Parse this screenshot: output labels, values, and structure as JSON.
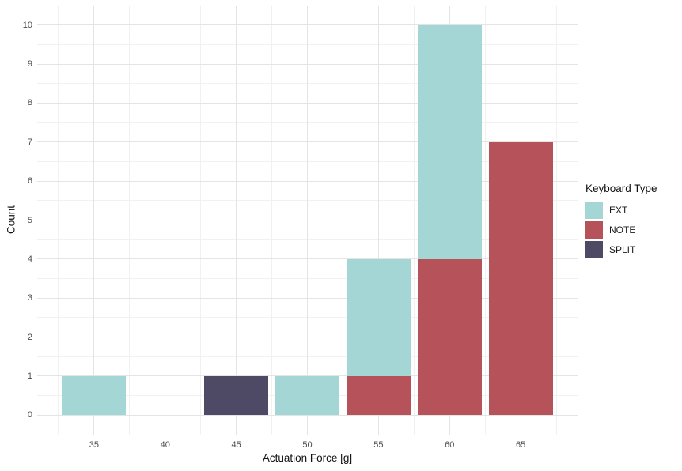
{
  "chart_data": {
    "type": "bar",
    "stacked": true,
    "title": "",
    "xlabel": "Actuation Force [g]",
    "ylabel": "Count",
    "legend_title": "Keyboard Type",
    "legend_position": "right",
    "grid": true,
    "xlim": [
      31,
      69
    ],
    "ylim": [
      -0.5,
      10.5
    ],
    "x_ticks": [
      35,
      40,
      45,
      50,
      55,
      60,
      65
    ],
    "y_ticks": [
      0,
      1,
      2,
      3,
      4,
      5,
      6,
      7,
      8,
      9,
      10
    ],
    "x_minor": [
      32.5,
      37.5,
      42.5,
      47.5,
      52.5,
      57.5,
      62.5,
      67.5
    ],
    "y_minor": [
      -0.5,
      0.5,
      1.5,
      2.5,
      3.5,
      4.5,
      5.5,
      6.5,
      7.5,
      8.5,
      9.5,
      10.5
    ],
    "bar_width": 4.5,
    "colors": {
      "EXT": "#a3d6d4",
      "NOTE": "#b5525a",
      "SPLIT": "#4e4a66"
    },
    "legend": [
      {
        "label": "EXT",
        "color": "#a3d6d4"
      },
      {
        "label": "NOTE",
        "color": "#b5525a"
      },
      {
        "label": "SPLIT",
        "color": "#4e4a66"
      }
    ],
    "bins": [
      {
        "x": 35,
        "segments": [
          {
            "series": "EXT",
            "value": 1
          }
        ]
      },
      {
        "x": 45,
        "segments": [
          {
            "series": "SPLIT",
            "value": 1
          }
        ]
      },
      {
        "x": 50,
        "segments": [
          {
            "series": "EXT",
            "value": 1
          }
        ]
      },
      {
        "x": 55,
        "segments": [
          {
            "series": "NOTE",
            "value": 1
          },
          {
            "series": "EXT",
            "value": 3
          }
        ]
      },
      {
        "x": 60,
        "segments": [
          {
            "series": "NOTE",
            "value": 4
          },
          {
            "series": "EXT",
            "value": 6
          }
        ]
      },
      {
        "x": 65,
        "segments": [
          {
            "series": "NOTE",
            "value": 7
          }
        ]
      }
    ]
  }
}
